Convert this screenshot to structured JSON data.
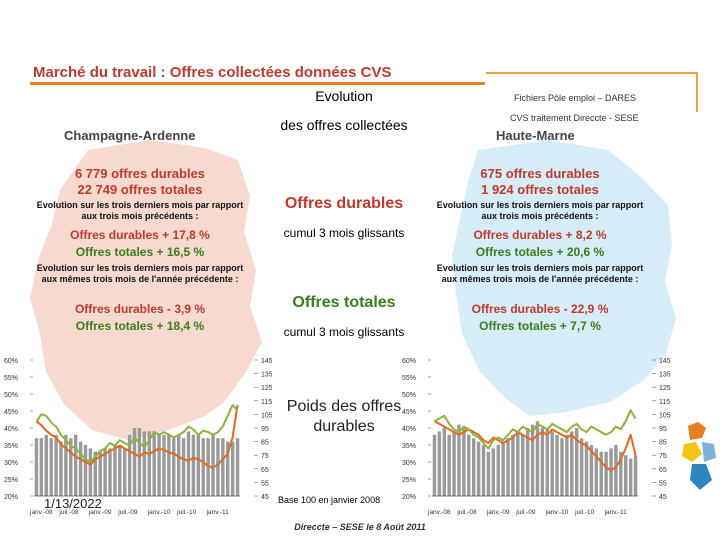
{
  "title": "Marché du travail : Offres collectées données CVS",
  "source": {
    "line1": "Fichiers Pôle emploi – DARES",
    "line2": "CVS traitement Direccte - SESE"
  },
  "middle": {
    "evolution": "Evolution",
    "evolution_sub": "des offres collectées",
    "offres_durables": "Offres durables",
    "offres_durables_sub": "cumul 3 mois glissants",
    "offres_totales": "Offres totales",
    "offres_totales_sub": "cumul 3 mois glissants",
    "poids": "Poids des offres durables",
    "base_note": "Base 100 en janvier 2008"
  },
  "left_region": {
    "name": "Champagne-Ardenne",
    "durables": "6 779 offres durables",
    "totales": "22 749 offres totales",
    "note1": "Evolution sur les trois derniers mois par rapport aux trois mois précédents :",
    "d1": "Offres durables + 17,8 %",
    "t1": "Offres totales + 16,5 %",
    "note2": "Evolution sur les trois derniers mois par rapport aux mêmes trois mois de l'année précédente :",
    "d2": "Offres durables - 3,9 %",
    "t2": "Offres totales + 18,4 %"
  },
  "right_region": {
    "name": "Haute-Marne",
    "durables": "675 offres durables",
    "totales": "1 924 offres totales",
    "note1": "Evolution sur les trois derniers mois par rapport aux trois mois précédents :",
    "d1": "Offres durables + 8,2 %",
    "t1": "Offres totales + 20,6 %",
    "note2": "Evolution sur les trois derniers mois par rapport aux mêmes trois mois de l'année précédente :",
    "d2": "Offres durables - 22,9 %",
    "t2": "Offres totales + 7,7 %"
  },
  "date": "1/13/2022",
  "footer": "Direccte – SESE le 8 Août 2011",
  "colors": {
    "bars": "#9a9a9a",
    "durables_line": "#e06a1e",
    "totales_line": "#8cb43a",
    "title": "#c0392b",
    "map_left": "#f7d9cf",
    "map_right": "#d6ecf7"
  },
  "chart_data": [
    {
      "type": "bar",
      "region": "Champagne-Ardenne",
      "categories": [
        "janv.-08",
        "févr.-08",
        "mars-08",
        "avr.-08",
        "mai-08",
        "juin-08",
        "juil.-08",
        "août-08",
        "sept.-08",
        "oct.-08",
        "nov.-08",
        "déc.-08",
        "janv.-09",
        "févr.-09",
        "mars-09",
        "avr.-09",
        "mai-09",
        "juin-09",
        "juil.-09",
        "août-09",
        "sept.-09",
        "oct.-09",
        "nov.-09",
        "déc.-09",
        "janv.-10",
        "févr.-10",
        "mars-10",
        "avr.-10",
        "mai-10",
        "juin-10",
        "juil.-10",
        "août-10",
        "sept.-10",
        "oct.-10",
        "nov.-10",
        "déc.-10",
        "janv.-11",
        "févr.-11",
        "mars-11",
        "avr.-11",
        "mai-11",
        "juin-11"
      ],
      "x_tick_labels": [
        "janv.-08",
        "juil.-08",
        "janv.-09",
        "juil.-09",
        "janv.-10",
        "juil.-10",
        "janv.-11"
      ],
      "left_axis": {
        "ticks": [
          "20%",
          "25%",
          "30%",
          "35%",
          "40%",
          "45%",
          "50%",
          "55%",
          "60%"
        ],
        "ylim": [
          20,
          60
        ]
      },
      "right_axis": {
        "ticks": [
          "45",
          "55",
          "65",
          "75",
          "85",
          "95",
          "105",
          "115",
          "125",
          "135",
          "145"
        ],
        "ylim": [
          45,
          145
        ]
      },
      "series": [
        {
          "name": "Poids des offres durables",
          "kind": "bar",
          "axis": "left",
          "values": [
            37,
            37,
            38,
            37,
            38,
            36,
            38,
            37,
            38,
            36,
            35,
            34,
            33,
            33,
            34,
            34,
            35,
            35,
            34,
            38,
            40,
            40,
            39,
            39,
            39,
            38,
            38,
            38,
            37,
            38,
            37,
            39,
            38,
            38,
            37,
            37,
            38,
            37,
            37,
            36,
            36,
            37
          ]
        },
        {
          "name": "Offres durables",
          "kind": "line",
          "axis": "right",
          "values": [
            100,
            97,
            93,
            90,
            88,
            83,
            80,
            77,
            74,
            72,
            70,
            68,
            72,
            74,
            76,
            78,
            80,
            82,
            80,
            78,
            76,
            74,
            77,
            76,
            78,
            80,
            79,
            77,
            76,
            74,
            72,
            71,
            73,
            72,
            70,
            67,
            66,
            68,
            72,
            76,
            88,
            112
          ]
        },
        {
          "name": "Offres totales",
          "kind": "line",
          "axis": "right",
          "values": [
            100,
            105,
            104,
            99,
            96,
            90,
            86,
            82,
            80,
            76,
            72,
            70,
            74,
            78,
            80,
            84,
            82,
            86,
            84,
            82,
            88,
            84,
            81,
            86,
            92,
            90,
            92,
            90,
            88,
            90,
            92,
            96,
            94,
            90,
            93,
            92,
            90,
            92,
            96,
            104,
            112,
            108
          ]
        }
      ]
    },
    {
      "type": "bar",
      "region": "Haute-Marne",
      "categories": [
        "janv.-08",
        "févr.-08",
        "mars-08",
        "avr.-08",
        "mai-08",
        "juin-08",
        "juil.-08",
        "août-08",
        "sept.-08",
        "oct.-08",
        "nov.-08",
        "déc.-08",
        "janv.-09",
        "févr.-09",
        "mars-09",
        "avr.-09",
        "mai-09",
        "juin-09",
        "juil.-09",
        "août-09",
        "sept.-09",
        "oct.-09",
        "nov.-09",
        "déc.-09",
        "janv.-10",
        "févr.-10",
        "mars-10",
        "avr.-10",
        "mai-10",
        "juin-10",
        "juil.-10",
        "août-10",
        "sept.-10",
        "oct.-10",
        "nov.-10",
        "déc.-10",
        "janv.-11",
        "févr.-11",
        "mars-11",
        "avr.-11",
        "mai-11",
        "juin-11"
      ],
      "x_tick_labels": [
        "janv.-08",
        "juil.-08",
        "janv.-09",
        "juil.-09",
        "janv.-10",
        "juil.-10",
        "janv.-11"
      ],
      "left_axis": {
        "ticks": [
          "20%",
          "25%",
          "30%",
          "35%",
          "40%",
          "45%",
          "50%",
          "55%",
          "60%"
        ],
        "ylim": [
          20,
          60
        ]
      },
      "right_axis": {
        "ticks": [
          "45",
          "55",
          "65",
          "75",
          "85",
          "95",
          "105",
          "115",
          "125",
          "135",
          "145"
        ],
        "ylim": [
          45,
          145
        ]
      },
      "series": [
        {
          "name": "Poids des offres durables",
          "kind": "bar",
          "axis": "left",
          "values": [
            38,
            39,
            40,
            38,
            39,
            41,
            40,
            38,
            37,
            36,
            35,
            33,
            34,
            35,
            36,
            37,
            38,
            39,
            38,
            40,
            41,
            42,
            40,
            40,
            39,
            38,
            37,
            38,
            39,
            40,
            37,
            36,
            35,
            34,
            33,
            33,
            34,
            35,
            33,
            32,
            31,
            32
          ]
        },
        {
          "name": "Offres durables",
          "kind": "line",
          "axis": "right",
          "values": [
            100,
            98,
            96,
            94,
            92,
            90,
            92,
            94,
            92,
            90,
            86,
            84,
            88,
            86,
            84,
            86,
            88,
            92,
            90,
            88,
            86,
            90,
            92,
            90,
            94,
            92,
            90,
            88,
            90,
            86,
            84,
            82,
            78,
            74,
            70,
            66,
            64,
            66,
            72,
            80,
            90,
            75
          ]
        },
        {
          "name": "Offres totales",
          "kind": "line",
          "axis": "right",
          "values": [
            100,
            102,
            104,
            98,
            94,
            92,
            96,
            94,
            90,
            88,
            84,
            80,
            86,
            88,
            86,
            90,
            94,
            92,
            96,
            94,
            92,
            98,
            96,
            94,
            98,
            96,
            94,
            92,
            96,
            98,
            94,
            92,
            96,
            94,
            92,
            90,
            92,
            96,
            94,
            100,
            108,
            102
          ]
        }
      ]
    }
  ]
}
